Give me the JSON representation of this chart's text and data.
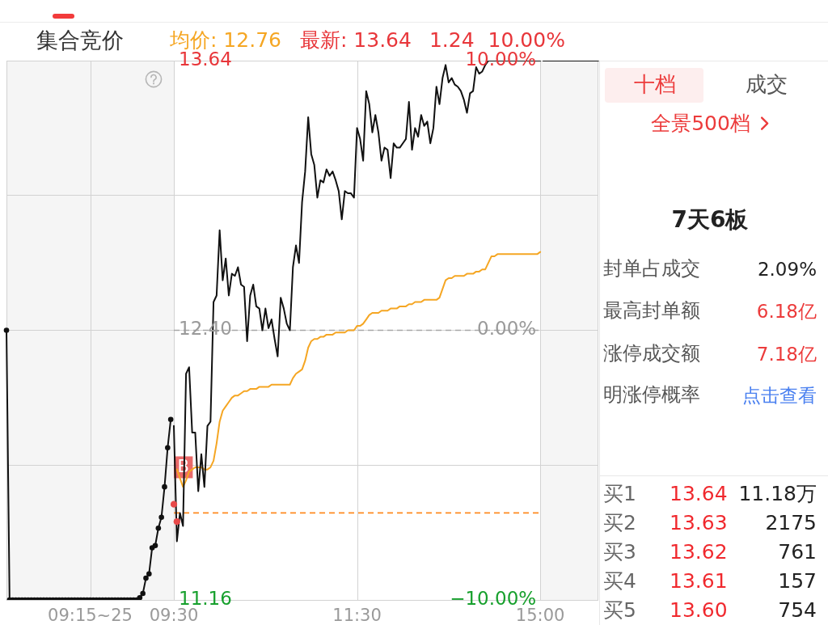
{
  "chart_data": [
    {
      "type": "line",
      "title": "集合竞价",
      "categories": [
        null,
        null,
        null,
        null,
        null,
        null,
        null,
        null,
        null,
        null,
        null,
        null,
        null,
        null,
        null,
        null,
        null,
        null,
        null,
        null,
        null,
        null,
        null,
        null,
        null,
        null,
        null,
        "09:15~25",
        null,
        null,
        null,
        null,
        null,
        null,
        null,
        null,
        null,
        null,
        null,
        null,
        null,
        null,
        null,
        null,
        null,
        null,
        null,
        null,
        null,
        null,
        null,
        null,
        null,
        null,
        null
      ],
      "ylim": [
        11.16,
        13.64
      ],
      "yticks": [
        {
          "value": 11.16,
          "label": null
        },
        {
          "value": 11.78,
          "label": null
        },
        {
          "value": 12.4,
          "label": null
        },
        {
          "value": 13.02,
          "label": null
        },
        {
          "value": 13.64,
          "label": null
        }
      ],
      "tick_labels": "x",
      "grid": true,
      "series": [
        {
          "color": "#111111",
          "marker": "circle",
          "values": [
            12.4,
            11.16,
            11.16,
            11.16,
            11.16,
            11.16,
            11.16,
            11.16,
            11.16,
            11.16,
            11.16,
            11.16,
            11.16,
            11.16,
            11.16,
            11.16,
            11.16,
            11.16,
            11.16,
            11.16,
            11.16,
            11.16,
            11.16,
            11.16,
            11.16,
            11.16,
            11.16,
            11.16,
            11.16,
            11.16,
            11.16,
            11.16,
            11.16,
            11.16,
            11.16,
            11.16,
            11.16,
            11.16,
            11.16,
            11.16,
            11.16,
            11.16,
            11.16,
            11.17,
            11.19,
            11.26,
            11.28,
            11.4,
            11.41,
            11.49,
            11.54,
            11.68,
            11.86,
            11.99,
            null
          ]
        }
      ]
    },
    {
      "type": "line",
      "annotations": [
        "均价: 12.76",
        "最新: 13.64",
        "1.24",
        "10.00%",
        {
          "text": "B",
          "y": 11.77
        }
      ],
      "categories": [
        "09:30",
        null,
        null,
        null,
        null,
        null,
        null,
        null,
        null,
        null,
        null,
        null,
        null,
        null,
        null,
        null,
        null,
        null,
        null,
        null,
        null,
        null,
        null,
        null,
        null,
        null,
        null,
        null,
        null,
        null,
        null,
        null,
        null,
        null,
        null,
        null,
        null,
        null,
        null,
        null,
        null,
        null,
        null,
        null,
        null,
        null,
        null,
        null,
        null,
        null,
        null,
        null,
        null,
        null,
        null,
        null,
        null,
        null,
        null,
        null,
        "11:30",
        null,
        null,
        null,
        null,
        null,
        null,
        null,
        null,
        null,
        null,
        null,
        null,
        null,
        null,
        null,
        null,
        null,
        null,
        null,
        null,
        null,
        null,
        null,
        null,
        null,
        null,
        null,
        null,
        null,
        null,
        null,
        null,
        null,
        null,
        null,
        null,
        null,
        null,
        null,
        null,
        null,
        null,
        null,
        null,
        null,
        null,
        null,
        null,
        null,
        null,
        null,
        null,
        null,
        null,
        null,
        null,
        null,
        null,
        null,
        "15:00",
        null,
        null,
        null,
        null,
        null,
        null,
        null,
        null,
        null,
        null,
        null,
        null,
        null,
        null,
        null,
        null,
        null,
        null,
        null
      ],
      "ylim": [
        11.16,
        13.64
      ],
      "yticks": [
        11.16,
        {
          "value": 11.78,
          "label": null
        },
        {
          "value": 12.4,
          "label": "12.40"
        },
        {
          "value": 13.02,
          "label": null
        },
        13.64
      ],
      "y2lim": [
        -10,
        10
      ],
      "y2ticks": [
        {
          "value": -10,
          "label": "−10.00%"
        },
        {
          "value": -5,
          "label": null
        },
        {
          "value": 0,
          "label": "0.00%"
        },
        {
          "value": 5,
          "label": null
        },
        {
          "value": 10,
          "label": "10.00%"
        }
      ],
      "grid": true,
      "ref_lines": [
        {
          "axis": "y",
          "value": 12.4,
          "color": "#a6a6a6",
          "line_style": "dashed"
        },
        {
          "axis": "y",
          "value": 11.56,
          "color": "#ff8a1f",
          "line_style": "dashed"
        }
      ],
      "series": [
        {
          "color": "#111111",
          "values": [
            11.96,
            11.43,
            11.56,
            11.5,
            12.2,
            12.23,
            11.93,
            11.93,
            11.66,
            11.83,
            11.68,
            11.96,
            11.98,
            12.53,
            12.56,
            12.86,
            12.63,
            12.73,
            12.56,
            12.66,
            12.65,
            12.69,
            12.61,
            12.6,
            12.35,
            12.56,
            12.61,
            12.51,
            12.5,
            12.4,
            12.5,
            12.41,
            12.45,
            12.36,
            12.28,
            12.55,
            12.5,
            12.43,
            12.4,
            12.69,
            12.79,
            12.71,
            12.99,
            13.13,
            13.38,
            13.21,
            13.16,
            13.01,
            13.09,
            13.08,
            13.14,
            13.11,
            13.13,
            13.09,
            13.04,
            12.91,
            13.04,
            13.03,
            13.03,
            13.01,
            13.33,
            13.28,
            13.18,
            13.5,
            13.44,
            13.31,
            13.39,
            13.31,
            13.18,
            13.24,
            13.23,
            13.1,
            13.26,
            13.24,
            13.24,
            13.26,
            13.28,
            13.45,
            13.23,
            13.33,
            13.29,
            13.39,
            13.34,
            13.36,
            13.26,
            13.33,
            13.52,
            13.44,
            13.56,
            13.62,
            13.54,
            13.56,
            13.53,
            13.52,
            13.5,
            13.46,
            13.4,
            13.49,
            13.5,
            13.61,
            13.58,
            13.59,
            13.62,
            13.64,
            13.64,
            13.64,
            13.64,
            13.64,
            13.64,
            13.64,
            13.64,
            13.64,
            13.64,
            13.64,
            13.64,
            13.64,
            13.64,
            13.64,
            13.64,
            13.64,
            13.64,
            null,
            null,
            null,
            null,
            null,
            null,
            null,
            null,
            null,
            null,
            null,
            null,
            null,
            null,
            null,
            null,
            null,
            null,
            null
          ]
        },
        {
          "color": "#f5a623",
          "values": [
            null,
            11.76,
            11.72,
            11.68,
            11.71,
            11.75,
            11.76,
            11.77,
            11.77,
            11.77,
            11.76,
            11.76,
            11.77,
            11.8,
            11.88,
            11.98,
            12.03,
            12.05,
            12.07,
            12.09,
            12.1,
            12.1,
            12.11,
            12.12,
            12.12,
            12.13,
            12.13,
            12.13,
            12.14,
            12.14,
            12.14,
            12.14,
            12.15,
            12.15,
            12.15,
            12.15,
            12.15,
            12.15,
            12.15,
            12.18,
            12.2,
            12.21,
            12.22,
            12.26,
            12.32,
            12.35,
            12.36,
            12.36,
            12.37,
            12.37,
            12.38,
            12.38,
            12.38,
            12.39,
            12.39,
            12.39,
            12.39,
            12.4,
            12.4,
            12.4,
            12.42,
            12.42,
            12.43,
            12.45,
            12.47,
            12.48,
            12.48,
            12.48,
            12.49,
            12.49,
            12.49,
            12.5,
            12.5,
            12.5,
            12.51,
            12.51,
            12.51,
            12.52,
            12.52,
            12.53,
            12.53,
            12.53,
            12.54,
            12.54,
            12.54,
            12.54,
            12.54,
            12.55,
            12.59,
            12.63,
            12.64,
            12.64,
            12.65,
            12.65,
            12.65,
            12.65,
            12.66,
            12.66,
            12.66,
            12.67,
            12.67,
            12.68,
            12.68,
            12.71,
            12.74,
            12.74,
            12.75,
            12.75,
            12.75,
            12.75,
            12.75,
            12.75,
            12.75,
            12.75,
            12.75,
            12.75,
            12.75,
            12.75,
            12.75,
            12.75,
            12.76,
            null,
            null,
            null,
            null,
            null,
            null,
            null,
            null,
            null,
            null,
            null,
            null,
            null,
            null,
            null,
            null,
            null,
            null,
            null
          ]
        },
        {
          "type": "scatter",
          "color": "#e84a4a",
          "marker": "circle",
          "values": [
            11.6,
            11.52,
            null,
            null,
            null,
            null,
            null,
            null,
            null,
            null,
            null,
            null,
            null,
            null,
            null,
            null,
            null,
            null,
            null,
            null,
            null,
            null,
            null,
            null,
            null,
            null,
            null,
            null,
            null,
            null,
            null,
            null,
            null,
            null,
            null,
            null,
            null,
            null,
            null,
            null,
            null,
            null,
            null,
            null,
            null,
            null,
            null,
            null,
            null,
            null,
            null,
            null,
            null,
            null,
            null,
            null,
            null,
            null,
            null,
            null,
            null,
            null,
            null,
            null,
            null,
            null,
            null,
            null,
            null,
            null,
            null,
            null,
            null,
            null,
            null,
            null,
            null,
            null,
            null,
            null,
            null,
            null,
            null,
            null,
            null,
            null,
            null,
            null,
            null,
            null,
            null,
            null,
            null,
            null,
            null,
            null,
            null,
            null,
            null,
            null,
            null,
            null,
            null,
            null,
            null,
            null,
            null,
            null,
            null,
            null,
            null,
            null,
            null,
            null,
            null,
            null,
            null,
            null,
            null,
            null,
            null,
            null,
            null,
            null,
            null,
            null,
            null,
            null,
            null,
            null,
            null,
            null,
            null,
            null,
            null,
            null,
            null,
            null,
            null,
            null
          ]
        },
        {
          "color": "#111111",
          "values": [
            null,
            null,
            null,
            null,
            null,
            null,
            null,
            null,
            null,
            null,
            null,
            null,
            null,
            null,
            null,
            null,
            null,
            null,
            null,
            null,
            null,
            null,
            null,
            null,
            null,
            null,
            null,
            null,
            null,
            null,
            null,
            null,
            null,
            null,
            null,
            null,
            null,
            null,
            null,
            null,
            null,
            null,
            null,
            null,
            null,
            null,
            null,
            null,
            null,
            null,
            null,
            null,
            null,
            null,
            null,
            null,
            null,
            null,
            null,
            null,
            null,
            null,
            null,
            null,
            null,
            null,
            null,
            null,
            null,
            null,
            null,
            null,
            null,
            null,
            null,
            null,
            null,
            null,
            null,
            null,
            null,
            null,
            null,
            null,
            null,
            null,
            null,
            null,
            null,
            null,
            null,
            null,
            null,
            null,
            null,
            null,
            null,
            null,
            null,
            null,
            null,
            null,
            null,
            null,
            null,
            null,
            null,
            null,
            null,
            null,
            null,
            null,
            null,
            null,
            null,
            null,
            null,
            null,
            null,
            null,
            null,
            13.64,
            13.64,
            13.64,
            13.64,
            13.64,
            13.64,
            13.64,
            13.64,
            13.64,
            13.64,
            13.64,
            13.64,
            13.64,
            13.64,
            13.64,
            13.64,
            13.64,
            13.64,
            13.64
          ]
        }
      ]
    },
    {
      "type": "other",
      "title": "7天6板",
      "annotations": [
        "十档",
        "成交",
        "全景500档",
        "封单占成交",
        "2.09%",
        "最高封单额",
        "6.18亿",
        "涨停成交额",
        "7.18亿",
        "明涨停概率",
        "点击查看",
        "买1 13.64",
        "11.18万",
        "买2 13.63",
        "2175",
        "买3 13.62",
        "761",
        "买4 13.61",
        "157",
        "买5 13.60",
        "754"
      ]
    }
  ]
}
